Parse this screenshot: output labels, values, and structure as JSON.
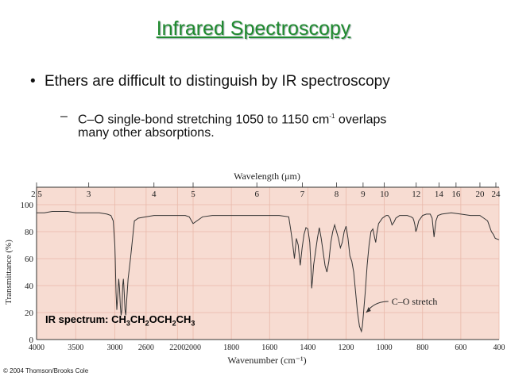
{
  "slide": {
    "title": "Infrared Spectroscopy",
    "bullet": "Ethers are difficult to distinguish by IR spectroscopy",
    "sub_line1_a": "C–O single-bond stretching 1050 to 1150 cm",
    "sub_line1_sup": "-1",
    "sub_line1_b": " overlaps",
    "sub_line2": "many other absorptions.",
    "credit": "© 2004 Thomson/Brooks Cole"
  },
  "chart_data": {
    "type": "line",
    "title": "",
    "top_axis_label": "Wavelength (μm)",
    "xlabel": "Wavenumber (cm⁻¹)",
    "ylabel": "Transmittance (%)",
    "xlim": [
      4000,
      400
    ],
    "ylim": [
      0,
      100
    ],
    "x_ticks": [
      "4000",
      "3500",
      "3000",
      "2600",
      "2200",
      "2000",
      "1800",
      "1600",
      "1400",
      "1200",
      "1000",
      "800",
      "600",
      "400"
    ],
    "y_ticks": [
      "0",
      "20",
      "40",
      "60",
      "80",
      "100"
    ],
    "wavelength_ticks": [
      "2.5",
      "3",
      "4",
      "5",
      "6",
      "7",
      "8",
      "9",
      "10",
      "12",
      "14",
      "16",
      "20",
      "24"
    ],
    "annotation": "C–O stretch",
    "annotation_x": 1120,
    "annotation_y": 10,
    "spectrum_label": {
      "p1": "IR spectrum: CH",
      "s1": "3",
      "p2": "CH",
      "s2": "2",
      "p3": "OCH",
      "s3": "2",
      "p4": "CH",
      "s4": "3"
    },
    "background_color": "#f7dcd2",
    "series": [
      {
        "x": [
          4000,
          3900,
          3800,
          3700,
          3600,
          3500,
          3400,
          3300,
          3200,
          3100,
          3050,
          3020,
          3000,
          2995,
          2985,
          2975,
          2965,
          2950,
          2940,
          2930,
          2920,
          2910,
          2900,
          2890,
          2880,
          2870,
          2860,
          2850,
          2830,
          2800,
          2750,
          2700,
          2600,
          2500,
          2400,
          2300,
          2200,
          2100,
          2050,
          2000,
          1950,
          1900,
          1800,
          1700,
          1600,
          1550,
          1500,
          1490,
          1480,
          1470,
          1460,
          1450,
          1440,
          1430,
          1420,
          1410,
          1400,
          1390,
          1385,
          1380,
          1375,
          1370,
          1360,
          1350,
          1340,
          1330,
          1320,
          1310,
          1300,
          1290,
          1280,
          1270,
          1260,
          1250,
          1240,
          1230,
          1220,
          1210,
          1200,
          1190,
          1180,
          1170,
          1160,
          1150,
          1140,
          1130,
          1125,
          1120,
          1115,
          1110,
          1100,
          1090,
          1080,
          1070,
          1060,
          1050,
          1045,
          1040,
          1030,
          1020,
          1010,
          1000,
          990,
          980,
          970,
          960,
          950,
          940,
          930,
          920,
          900,
          880,
          860,
          850,
          845,
          840,
          835,
          830,
          820,
          800,
          780,
          760,
          750,
          745,
          740,
          735,
          730,
          720,
          700,
          650,
          600,
          550,
          500,
          480,
          460,
          450,
          440,
          430,
          420,
          400
        ],
        "y": [
          94,
          94,
          95,
          95,
          95,
          94,
          94,
          94,
          94,
          93,
          92,
          88,
          70,
          60,
          35,
          22,
          30,
          45,
          38,
          25,
          18,
          22,
          40,
          45,
          35,
          22,
          18,
          28,
          45,
          60,
          88,
          90,
          91,
          92,
          92,
          92,
          92,
          92,
          91,
          86,
          91,
          92,
          92,
          92,
          92,
          92,
          91,
          82,
          72,
          60,
          75,
          70,
          55,
          68,
          78,
          83,
          82,
          72,
          58,
          38,
          45,
          55,
          65,
          75,
          83,
          75,
          65,
          55,
          50,
          58,
          72,
          80,
          85,
          80,
          75,
          68,
          72,
          80,
          84,
          75,
          62,
          58,
          50,
          35,
          20,
          10,
          8,
          6,
          10,
          18,
          35,
          55,
          70,
          80,
          82,
          75,
          72,
          78,
          86,
          88,
          90,
          91,
          92,
          92,
          90,
          85,
          87,
          90,
          91,
          92,
          92,
          92,
          91,
          90,
          88,
          85,
          80,
          82,
          88,
          92,
          93,
          93,
          90,
          83,
          76,
          82,
          88,
          92,
          93,
          94,
          93,
          92,
          92,
          90,
          88,
          84,
          80,
          78,
          75,
          74
        ]
      }
    ]
  }
}
